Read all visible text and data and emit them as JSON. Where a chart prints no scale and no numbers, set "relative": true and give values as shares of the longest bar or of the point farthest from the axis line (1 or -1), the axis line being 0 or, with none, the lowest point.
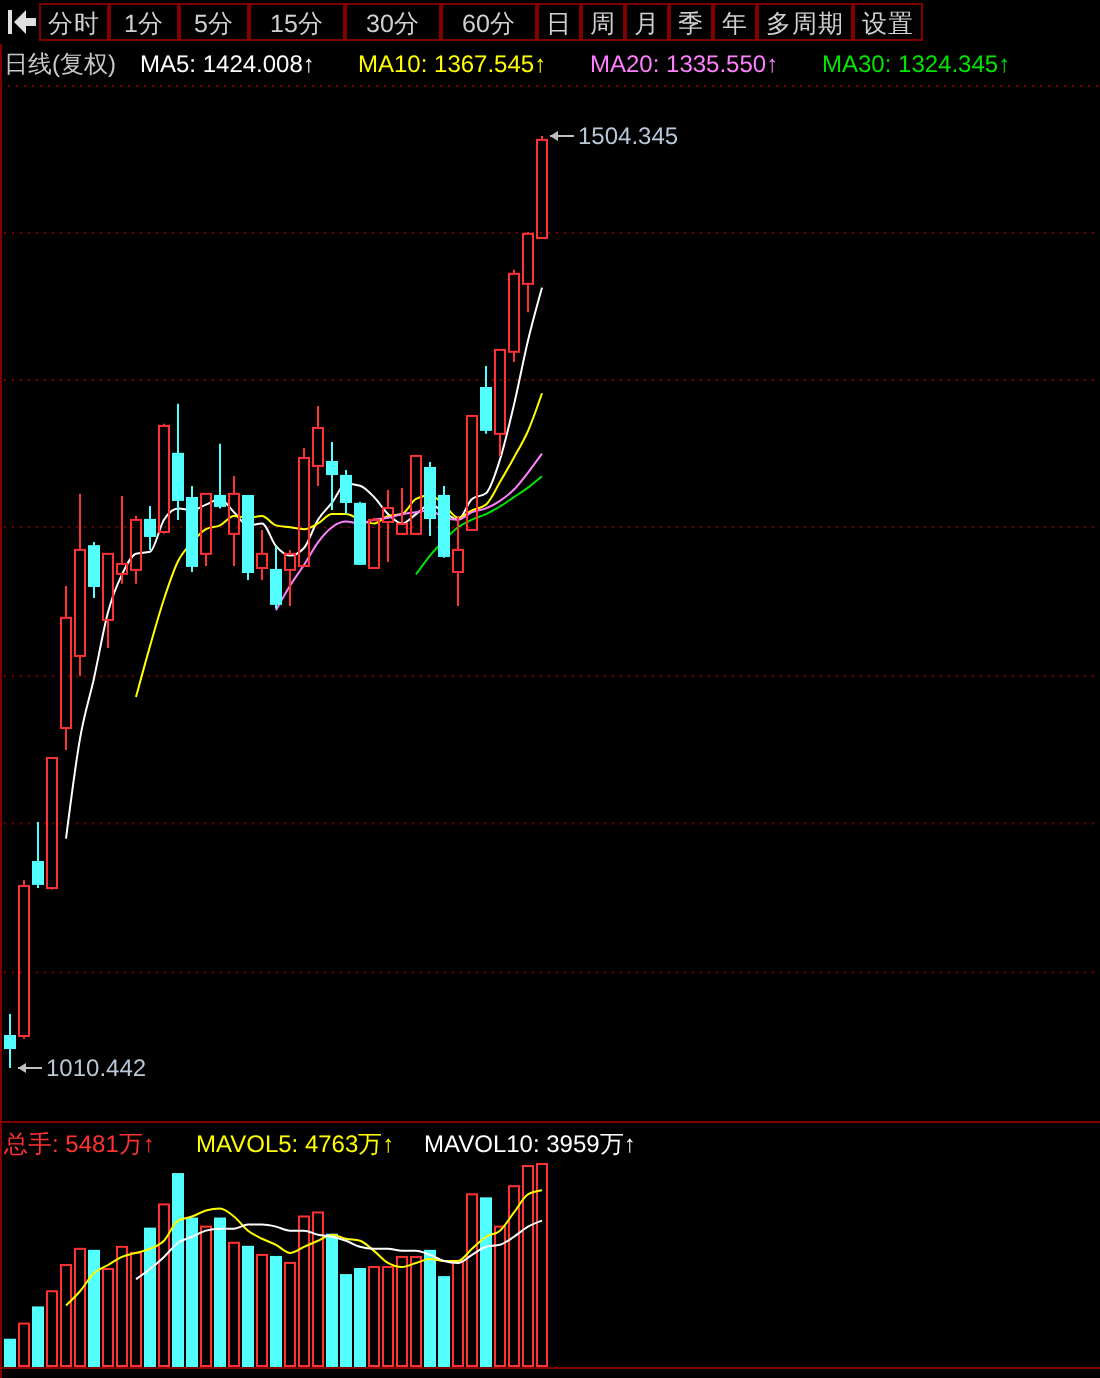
{
  "chart_data": [
    {
      "type": "other",
      "annotations": [
        "分时",
        "1分",
        "5分",
        "15分",
        "30分",
        "60分",
        "日",
        "周",
        "月",
        "季",
        "年",
        "多周期",
        "设置"
      ]
    },
    {
      "type": "candlestick",
      "title": "日线(复权)",
      "legend": "top",
      "grid": "y",
      "categories": [
        null,
        null,
        null,
        null,
        null,
        null,
        null,
        null,
        null,
        null,
        null,
        null,
        null,
        null,
        null,
        null,
        null,
        null,
        null,
        null,
        null,
        null,
        null,
        null,
        null,
        null,
        null,
        null,
        null,
        null,
        null,
        null,
        null,
        null,
        null,
        null,
        null,
        null,
        null
      ],
      "yticks": [
        {
          "value": 1061,
          "label": null
        },
        {
          "value": 1140,
          "label": null
        },
        {
          "value": 1218,
          "label": null
        },
        {
          "value": 1297,
          "label": null
        },
        {
          "value": 1375,
          "label": null
        },
        {
          "value": 1453,
          "label": null
        }
      ],
      "ohlc": [
        [
          1027.4,
          1039,
          1010.442,
          1021
        ],
        [
          1027.4,
          1110,
          1026,
          1106.9
        ],
        [
          1119.6,
          1140.8,
          1105.8,
          1108
        ],
        [
          1105.8,
          1174.7,
          1105,
          1174.7
        ],
        [
          1190.6,
          1265.9,
          1179,
          1249
        ],
        [
          1228.8,
          1314.7,
          1218.2,
          1285
        ],
        [
          1287,
          1289.2,
          1259.5,
          1265.9
        ],
        [
          1247.9,
          1282.9,
          1233,
          1282.9
        ],
        [
          1272.3,
          1313.6,
          1267,
          1277.6
        ],
        [
          1274.4,
          1303,
          1267,
          1300.9
        ],
        [
          1300.9,
          1308.3,
          1285,
          1292.4
        ],
        [
          1294.5,
          1351.8,
          1293.5,
          1350.7
        ],
        [
          1335.9,
          1362.4,
          1300.9,
          1311.5
        ],
        [
          1312.5,
          1318.9,
          1273.3,
          1276.5
        ],
        [
          1282.9,
          1314.7,
          1276.5,
          1314.7
        ],
        [
          1313.6,
          1341.2,
          1307,
          1308.3
        ],
        [
          1293.5,
          1324.2,
          1276.5,
          1314.7
        ],
        [
          1313.6,
          1313.6,
          1269,
          1273.3
        ],
        [
          1275.4,
          1295.6,
          1269,
          1282.9
        ],
        [
          1274.4,
          1287,
          1254,
          1256.4
        ],
        [
          1274.4,
          1285,
          1255.3,
          1282.9
        ],
        [
          1276.5,
          1339,
          1276.5,
          1333.7
        ],
        [
          1329.5,
          1361.3,
          1318.9,
          1349.6
        ],
        [
          1331.6,
          1342.2,
          1306.2,
          1325.2
        ],
        [
          1324.2,
          1327.4,
          1304,
          1310.4
        ],
        [
          1309.4,
          1310.5,
          1277,
          1277.6
        ],
        [
          1275.4,
          1302,
          1275,
          1300.9
        ],
        [
          1299.8,
          1316.8,
          1278.6,
          1307.2
        ],
        [
          1293.5,
          1317.8,
          1293,
          1298.8
        ],
        [
          1293.5,
          1335,
          1293,
          1334.8
        ],
        [
          1328.4,
          1331.6,
          1292.4,
          1301.9
        ],
        [
          1313.6,
          1318.9,
          1280.8,
          1281.8
        ],
        [
          1273.3,
          1303,
          1255.3,
          1285
        ],
        [
          1295.6,
          1356,
          1295.6,
          1356
        ],
        [
          1370.8,
          1382.5,
          1346.5,
          1348.6
        ],
        [
          1346.5,
          1391,
          1334.8,
          1391
        ],
        [
          1390,
          1433.4,
          1384.6,
          1431.3
        ],
        [
          1426,
          1453.5,
          1411,
          1452.5
        ],
        [
          1450.3,
          1504.345,
          1450,
          1502.3
        ]
      ],
      "series": [
        {
          "name": "MA5: 1424.008↑",
          "type": "line",
          "color": "#ffffff",
          "values": [
            null,
            null,
            null,
            null,
            1132,
            1185,
            1217,
            1252,
            1272,
            1283,
            1284,
            1301,
            1307,
            1306,
            1309,
            1312,
            1305,
            1298,
            1299,
            1287,
            1282,
            1286,
            1301,
            1310,
            1320,
            1319,
            1313,
            1304,
            1299,
            1304,
            1309,
            1305,
            1301,
            1312,
            1315,
            1333,
            1362,
            1396,
            1424
          ]
        },
        {
          "name": "MA10: 1367.545↑",
          "type": "line",
          "color": "#ffff00",
          "values": [
            null,
            null,
            null,
            null,
            null,
            null,
            null,
            null,
            null,
            1207,
            1234,
            1259,
            1279,
            1289,
            1296,
            1298,
            1303,
            1302,
            1303,
            1298,
            1297,
            1296,
            1299,
            1304,
            1304,
            1301,
            1299,
            1303,
            1304,
            1312,
            1314,
            1309,
            1302,
            1306,
            1309,
            1321,
            1334,
            1348,
            1368
          ]
        },
        {
          "name": "MA20: 1335.550↑",
          "type": "line",
          "color": "#ff80ff",
          "values": [
            null,
            null,
            null,
            null,
            null,
            null,
            null,
            null,
            null,
            null,
            null,
            null,
            null,
            null,
            null,
            null,
            null,
            null,
            null,
            1253,
            1266,
            1277,
            1289,
            1297,
            1300,
            1299,
            1301,
            1302,
            1304,
            1305,
            1306,
            1302,
            1301,
            1305,
            1307,
            1311,
            1317,
            1326,
            1336
          ]
        },
        {
          "name": "MA30: 1324.345↑",
          "type": "line",
          "color": "#00e600",
          "values": [
            null,
            null,
            null,
            null,
            null,
            null,
            null,
            null,
            null,
            null,
            null,
            null,
            null,
            null,
            null,
            null,
            null,
            null,
            null,
            null,
            null,
            null,
            null,
            null,
            null,
            null,
            null,
            null,
            null,
            1272,
            1282,
            1290,
            1297,
            1301,
            1304,
            1308,
            1313,
            1318,
            1324
          ]
        }
      ],
      "annotations": [
        "1504.345",
        "1010.442"
      ]
    },
    {
      "type": "bar",
      "relative": true,
      "title": "总手: 5481万↑",
      "legend": "top",
      "categories": [
        null,
        null,
        null,
        null,
        null,
        null,
        null,
        null,
        null,
        null,
        null,
        null,
        null,
        null,
        null,
        null,
        null,
        null,
        null,
        null,
        null,
        null,
        null,
        null,
        null,
        null,
        null,
        null,
        null,
        null,
        null,
        null,
        null,
        null,
        null,
        null,
        null,
        null,
        null
      ],
      "series": [
        {
          "type": "bar",
          "colors": [
            "#54ffff",
            "#ff3232",
            "#54ffff",
            "#ff3232",
            "#ff3232",
            "#ff3232",
            "#54ffff",
            "#ff3232",
            "#ff3232",
            "#ff3232",
            "#54ffff",
            "#ff3232",
            "#54ffff",
            "#54ffff",
            "#ff3232",
            "#54ffff",
            "#ff3232",
            "#54ffff",
            "#ff3232",
            "#54ffff",
            "#ff3232",
            "#ff3232",
            "#ff3232",
            "#54ffff",
            "#54ffff",
            "#54ffff",
            "#ff3232",
            "#ff3232",
            "#ff3232",
            "#ff3232",
            "#54ffff",
            "#54ffff",
            "#ff3232",
            "#ff3232",
            "#54ffff",
            "#ff3232",
            "#ff3232",
            "#ff3232",
            "#ff3232"
          ],
          "values": [
            0.13,
            0.21,
            0.29,
            0.37,
            0.5,
            0.58,
            0.57,
            0.48,
            0.59,
            0.56,
            0.68,
            0.8,
            0.95,
            0.73,
            0.69,
            0.73,
            0.61,
            0.59,
            0.55,
            0.54,
            0.51,
            0.74,
            0.76,
            0.65,
            0.45,
            0.48,
            0.49,
            0.49,
            0.54,
            0.54,
            0.57,
            0.44,
            0.52,
            0.85,
            0.83,
            0.69,
            0.89,
            0.99,
            1
          ]
        },
        {
          "name": "MAVOL5: 4763万↑",
          "type": "line",
          "color": "#ffff00",
          "values": [
            null,
            null,
            null,
            null,
            0.3,
            0.37,
            0.46,
            0.5,
            0.54,
            0.56,
            0.58,
            0.62,
            0.72,
            0.74,
            0.77,
            0.78,
            0.74,
            0.67,
            0.63,
            0.6,
            0.56,
            0.59,
            0.62,
            0.65,
            0.63,
            0.62,
            0.57,
            0.51,
            0.49,
            0.51,
            0.53,
            0.52,
            0.52,
            0.58,
            0.64,
            0.67,
            0.76,
            0.85,
            0.87
          ]
        },
        {
          "name": "MAVOL10: 3959万↑",
          "type": "line",
          "color": "#ffffff",
          "values": [
            null,
            null,
            null,
            null,
            null,
            null,
            null,
            null,
            null,
            0.43,
            0.48,
            0.54,
            0.61,
            0.64,
            0.67,
            0.68,
            0.68,
            0.7,
            0.7,
            0.69,
            0.67,
            0.67,
            0.65,
            0.64,
            0.62,
            0.59,
            0.58,
            0.58,
            0.57,
            0.57,
            0.55,
            0.52,
            0.51,
            0.55,
            0.59,
            0.6,
            0.64,
            0.69,
            0.72
          ]
        }
      ]
    }
  ]
}
